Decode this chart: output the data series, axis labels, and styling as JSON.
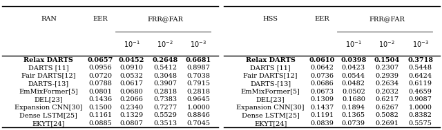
{
  "left_table": {
    "header_col": "RAN",
    "header_eer": "EER",
    "header_frr": "FRR@FAR",
    "rows": [
      {
        "name": "Relax DARTS",
        "bold": true,
        "eer": "0.0657",
        "frr1": "0.0452",
        "frr2": "0.2648",
        "frr3": "0.6681"
      },
      {
        "name": "DARTS [11]",
        "bold": false,
        "eer": "0.0956",
        "frr1": "0.0910",
        "frr2": "0.5412",
        "frr3": "0.8987"
      },
      {
        "name": "Fair DARTS[12]",
        "bold": false,
        "eer": "0.0720",
        "frr1": "0.0532",
        "frr2": "0.3048",
        "frr3": "0.7038"
      },
      {
        "name": "DARTS-[13]",
        "bold": false,
        "eer": "0.0788",
        "frr1": "0.0617",
        "frr2": "0.3907",
        "frr3": "0.7915"
      },
      {
        "name": "EmMixFormer[5]",
        "bold": false,
        "eer": "0.0801",
        "frr1": "0.0680",
        "frr2": "0.2818",
        "frr3": "0.2818"
      },
      {
        "name": "DEL[23]",
        "bold": false,
        "eer": "0.1436",
        "frr1": "0.2066",
        "frr2": "0.7383",
        "frr3": "0.9645"
      },
      {
        "name": "Expansion CNN[30]",
        "bold": false,
        "eer": "0.1500",
        "frr1": "0.2340",
        "frr2": "0.7277",
        "frr3": "1.0000"
      },
      {
        "name": "Dense LSTM[25]",
        "bold": false,
        "eer": "0.1161",
        "frr1": "0.1329",
        "frr2": "0.5529",
        "frr3": "0.8846"
      },
      {
        "name": "EKYT[24]",
        "bold": false,
        "eer": "0.0885",
        "frr1": "0.0807",
        "frr2": "0.3513",
        "frr3": "0.7045"
      }
    ]
  },
  "right_table": {
    "header_col": "HSS",
    "header_eer": "EER",
    "header_frr": "FRR@FAR",
    "rows": [
      {
        "name": "Relax DARTS",
        "bold": true,
        "eer": "0.0610",
        "frr1": "0.0398",
        "frr2": "0.1504",
        "frr3": "0.3718"
      },
      {
        "name": "DARTS [11]",
        "bold": false,
        "eer": "0.0642",
        "frr1": "0.0423",
        "frr2": "0.2307",
        "frr3": "0.5448"
      },
      {
        "name": "Fair DARTS[12]",
        "bold": false,
        "eer": "0.0736",
        "frr1": "0.0544",
        "frr2": "0.2939",
        "frr3": "0.6424"
      },
      {
        "name": "DARTS-[13]",
        "bold": false,
        "eer": "0.0686",
        "frr1": "0.0482",
        "frr2": "0.2634",
        "frr3": "0.6119"
      },
      {
        "name": "EmMixFormer[5]",
        "bold": false,
        "eer": "0.0673",
        "frr1": "0.0502",
        "frr2": "0.2032",
        "frr3": "0.4659"
      },
      {
        "name": "DEL[23]",
        "bold": false,
        "eer": "0.1309",
        "frr1": "0.1680",
        "frr2": "0.6217",
        "frr3": "0.9087"
      },
      {
        "name": "Expansion CNN[30]",
        "bold": false,
        "eer": "0.1437",
        "frr1": "0.1894",
        "frr2": "0.6267",
        "frr3": "1.0000"
      },
      {
        "name": "Dense LSTM[25]",
        "bold": false,
        "eer": "0.1191",
        "frr1": "0.1365",
        "frr2": "0.5082",
        "frr3": "0.8382"
      },
      {
        "name": "EKYT[24]",
        "bold": false,
        "eer": "0.0839",
        "frr1": "0.0739",
        "frr2": "0.2691",
        "frr3": "0.5575"
      }
    ]
  },
  "bg_color": "#ffffff",
  "font_size": 7.0,
  "header_font_size": 7.0
}
